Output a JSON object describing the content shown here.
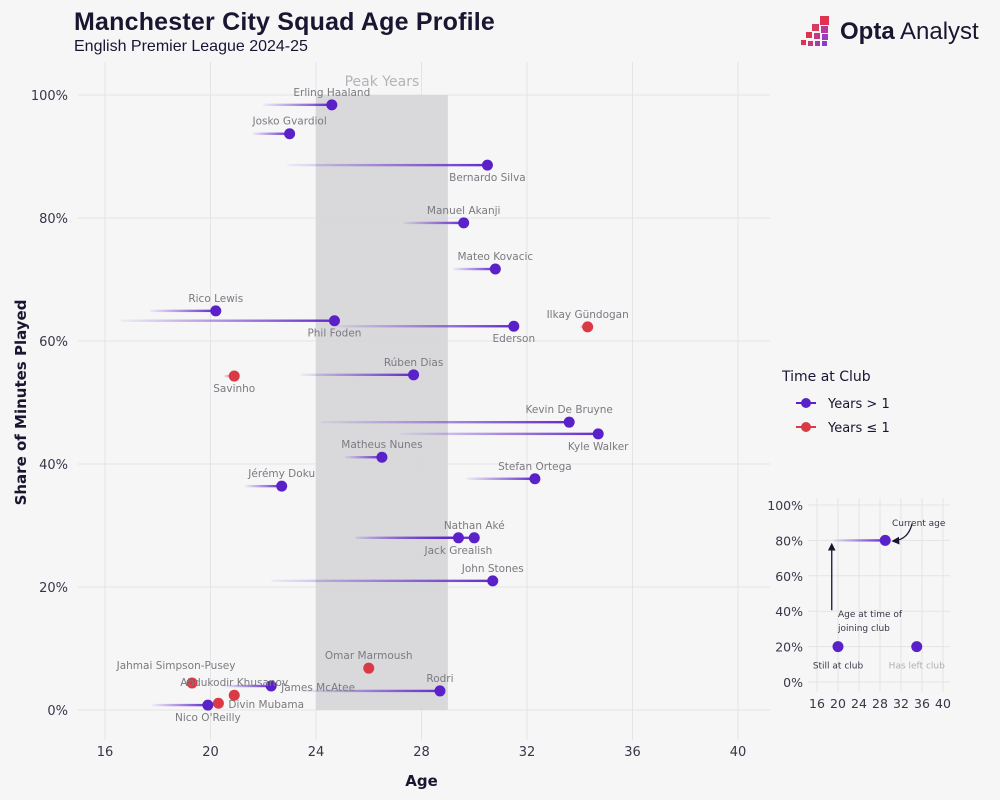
{
  "header": {
    "title": "Manchester City Squad Age Profile",
    "subtitle": "English Premier League 2024-25",
    "logo_brand": "Opta",
    "logo_suffix": "Analyst"
  },
  "colors": {
    "long_tenure": "#5b21c9",
    "short_tenure": "#d93a45",
    "peak_band": "#d6d6d8",
    "grid": "#e4e4e6",
    "label": "#7a7a80"
  },
  "chart_data": {
    "type": "scatter",
    "title": "Manchester City Squad Age Profile",
    "subtitle": "English Premier League 2024-25",
    "xlabel": "Age",
    "ylabel": "Share of Minutes Played",
    "xlim": [
      15,
      41
    ],
    "ylim": [
      0,
      100
    ],
    "xticks": [
      16,
      20,
      24,
      28,
      32,
      36,
      40
    ],
    "xtick_labels": [
      "16",
      "20",
      "24",
      "28",
      "32",
      "36",
      "40"
    ],
    "yticks": [
      0,
      20,
      40,
      60,
      80,
      100
    ],
    "ytick_labels": [
      "0%",
      "20%",
      "40%",
      "60%",
      "80%",
      "100%"
    ],
    "grid": true,
    "annotation_band": {
      "label": "Peak Years",
      "x_from": 24,
      "x_to": 29,
      "y_to": 100
    },
    "legend": {
      "title": "Time at Club",
      "placement": "right",
      "items": [
        {
          "label": "Years > 1",
          "group": "long"
        },
        {
          "label": "Years ≤ 1",
          "group": "short"
        }
      ]
    },
    "series": [
      {
        "name": "Erling Haaland",
        "age": 24.6,
        "joined_age": 22.0,
        "share": 98.4,
        "group": "long",
        "label_pos": "above"
      },
      {
        "name": "Josko Gvardiol",
        "age": 23.0,
        "joined_age": 21.6,
        "share": 93.7,
        "group": "long",
        "label_pos": "above"
      },
      {
        "name": "Bernardo Silva",
        "age": 30.5,
        "joined_age": 22.9,
        "share": 88.6,
        "group": "long",
        "label_pos": "below"
      },
      {
        "name": "Manuel Akanji",
        "age": 29.6,
        "joined_age": 27.3,
        "share": 79.2,
        "group": "long",
        "label_pos": "above"
      },
      {
        "name": "Mateo Kovacic",
        "age": 30.8,
        "joined_age": 29.2,
        "share": 71.7,
        "group": "long",
        "label_pos": "above"
      },
      {
        "name": "Rico Lewis",
        "age": 20.2,
        "joined_age": 17.7,
        "share": 64.9,
        "group": "long",
        "label_pos": "above"
      },
      {
        "name": "Phil Foden",
        "age": 24.7,
        "joined_age": 16.6,
        "share": 63.3,
        "group": "long",
        "label_pos": "below"
      },
      {
        "name": "Ederson",
        "age": 31.5,
        "joined_age": 24.7,
        "share": 62.4,
        "group": "long",
        "label_pos": "below"
      },
      {
        "name": "Ilkay Gündogan",
        "age": 34.3,
        "joined_age": 34.0,
        "share": 62.3,
        "group": "short",
        "label_pos": "above"
      },
      {
        "name": "Rúben Dias",
        "age": 27.7,
        "joined_age": 23.4,
        "share": 54.5,
        "group": "long",
        "label_pos": "above"
      },
      {
        "name": "Savinho",
        "age": 20.9,
        "joined_age": 20.5,
        "share": 54.3,
        "group": "short",
        "label_pos": "below"
      },
      {
        "name": "Kevin De Bruyne",
        "age": 33.6,
        "joined_age": 24.2,
        "share": 46.8,
        "group": "long",
        "label_pos": "above"
      },
      {
        "name": "Kyle Walker",
        "age": 34.7,
        "joined_age": 27.2,
        "share": 44.9,
        "group": "long",
        "label_pos": "below"
      },
      {
        "name": "Matheus Nunes",
        "age": 26.5,
        "joined_age": 25.1,
        "share": 41.1,
        "group": "long",
        "label_pos": "above"
      },
      {
        "name": "Stefan Ortega",
        "age": 32.3,
        "joined_age": 29.7,
        "share": 37.6,
        "group": "long",
        "label_pos": "above"
      },
      {
        "name": "Jérémy Doku",
        "age": 22.7,
        "joined_age": 21.3,
        "share": 36.4,
        "group": "long",
        "label_pos": "above"
      },
      {
        "name": "Nathan Aké",
        "age": 30.0,
        "joined_age": 25.5,
        "share": 28.0,
        "group": "long",
        "label_pos": "above"
      },
      {
        "name": "Jack Grealish",
        "age": 29.4,
        "joined_age": 25.5,
        "share": 28.0,
        "group": "long",
        "label_pos": "below"
      },
      {
        "name": "John Stones",
        "age": 30.7,
        "joined_age": 22.3,
        "share": 21.0,
        "group": "long",
        "label_pos": "above"
      },
      {
        "name": "Omar Marmoush",
        "age": 26.0,
        "joined_age": 26.0,
        "share": 6.8,
        "group": "short",
        "label_pos": "above"
      },
      {
        "name": "Jahmai Simpson-Pusey",
        "age": 19.3,
        "joined_age": 19.3,
        "share": 4.4,
        "group": "short",
        "label_pos": "above-left"
      },
      {
        "name": "Abdukodir Khusanov",
        "age": 20.9,
        "joined_age": 20.9,
        "share": 2.4,
        "group": "short",
        "label_pos": "above"
      },
      {
        "name": "James McAtee",
        "age": 22.3,
        "joined_age": 20.5,
        "share": 3.9,
        "group": "long",
        "label_pos": "right"
      },
      {
        "name": "Rodri",
        "age": 28.7,
        "joined_age": 23.4,
        "share": 3.1,
        "group": "long",
        "label_pos": "above"
      },
      {
        "name": "Divin Mubama",
        "age": 20.3,
        "joined_age": 20.3,
        "share": 1.1,
        "group": "short",
        "label_pos": "right"
      },
      {
        "name": "Nico O'Reilly",
        "age": 19.9,
        "joined_age": 17.8,
        "share": 0.8,
        "group": "long",
        "label_pos": "below"
      }
    ],
    "inset_legend": {
      "xticks": [
        16,
        20,
        24,
        28,
        32,
        36,
        40
      ],
      "yticks": [
        0,
        20,
        40,
        60,
        80,
        100
      ],
      "ytick_labels": [
        "0%",
        "20%",
        "40%",
        "60%",
        "80%",
        "100%"
      ],
      "example_line": {
        "joined_age": 19,
        "age": 29,
        "share": 80
      },
      "example_points": [
        {
          "age": 20,
          "share": 20,
          "label": "Still at club",
          "faded": false
        },
        {
          "age": 35,
          "share": 20,
          "label": "Has left club",
          "faded": true
        }
      ],
      "annotations": {
        "current_age": "Current age",
        "joining_age": "Age at time of joining club"
      }
    }
  }
}
